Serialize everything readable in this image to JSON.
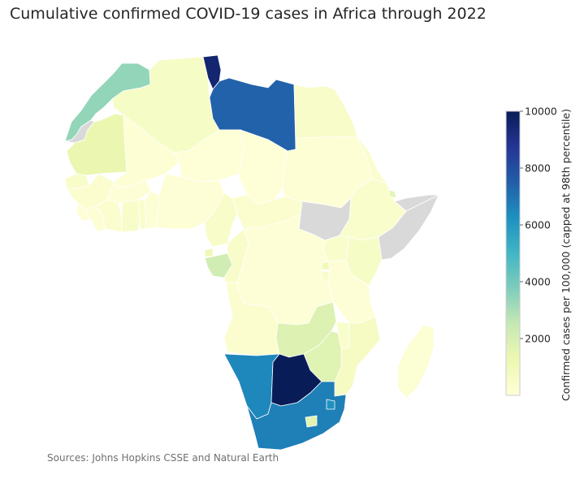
{
  "title": "Cumulative confirmed COVID-19 cases in Africa through 2022",
  "source": "Sources: Johns Hopkins CSSE and Natural Earth",
  "colorbar": {
    "label": "Confirmed cases per 100,000 (capped at 98th percentile)",
    "ticks": [
      "10000",
      "8000",
      "6000",
      "4000",
      "2000"
    ],
    "range": [
      0,
      10000
    ],
    "missing_color": "#d9d9d9"
  },
  "colors": {
    "scale": [
      "#ffffd9",
      "#edf8b1",
      "#c7e9b4",
      "#7fcdbb",
      "#41b6c4",
      "#1d91c0",
      "#225ea8",
      "#253494",
      "#081d58"
    ]
  },
  "chart_data": {
    "type": "choropleth",
    "metric": "Confirmed cases per 100,000 (capped at 98th percentile)",
    "regions": [
      {
        "name": "Morocco",
        "value": 3400
      },
      {
        "name": "Western Sahara",
        "value": null
      },
      {
        "name": "Algeria",
        "value": 600
      },
      {
        "name": "Tunisia",
        "value": 9500
      },
      {
        "name": "Libya",
        "value": 7400
      },
      {
        "name": "Egypt",
        "value": 500
      },
      {
        "name": "Mauritania",
        "value": 1300
      },
      {
        "name": "Mali",
        "value": 150
      },
      {
        "name": "Niger",
        "value": 50
      },
      {
        "name": "Chad",
        "value": 50
      },
      {
        "name": "Sudan",
        "value": 150
      },
      {
        "name": "Senegal",
        "value": 500
      },
      {
        "name": "Guinea",
        "value": 300
      },
      {
        "name": "Sierra Leone",
        "value": 100
      },
      {
        "name": "Liberia",
        "value": 150
      },
      {
        "name": "Cote d'Ivoire",
        "value": 300
      },
      {
        "name": "Burkina Faso",
        "value": 100
      },
      {
        "name": "Ghana",
        "value": 500
      },
      {
        "name": "Togo",
        "value": 400
      },
      {
        "name": "Benin",
        "value": 200
      },
      {
        "name": "Nigeria",
        "value": 100
      },
      {
        "name": "Cameroon",
        "value": 500
      },
      {
        "name": "Central African Republic",
        "value": 300
      },
      {
        "name": "South Sudan",
        "value": null
      },
      {
        "name": "Ethiopia",
        "value": 400
      },
      {
        "name": "Eritrea",
        "value": 300
      },
      {
        "name": "Djibouti",
        "value": 1500
      },
      {
        "name": "Somalia",
        "value": null
      },
      {
        "name": "Somaliland",
        "value": null
      },
      {
        "name": "Kenya",
        "value": 600
      },
      {
        "name": "Uganda",
        "value": 400
      },
      {
        "name": "Rwanda",
        "value": 1000
      },
      {
        "name": "Burundi",
        "value": 500
      },
      {
        "name": "Gabon",
        "value": 2200
      },
      {
        "name": "Equatorial Guinea",
        "value": 1100
      },
      {
        "name": "Republic of the Congo",
        "value": 500
      },
      {
        "name": "DR Congo",
        "value": 100
      },
      {
        "name": "Tanzania",
        "value": 100
      },
      {
        "name": "Angola",
        "value": 300
      },
      {
        "name": "Zambia",
        "value": 1800
      },
      {
        "name": "Malawi",
        "value": 400
      },
      {
        "name": "Mozambique",
        "value": 700
      },
      {
        "name": "Zimbabwe",
        "value": 1700
      },
      {
        "name": "Namibia",
        "value": 6500
      },
      {
        "name": "Botswana",
        "value": 10000
      },
      {
        "name": "South Africa",
        "value": 6700
      },
      {
        "name": "Eswatini",
        "value": 6200
      },
      {
        "name": "Lesotho",
        "value": 1600
      },
      {
        "name": "Madagascar",
        "value": 200
      }
    ]
  }
}
